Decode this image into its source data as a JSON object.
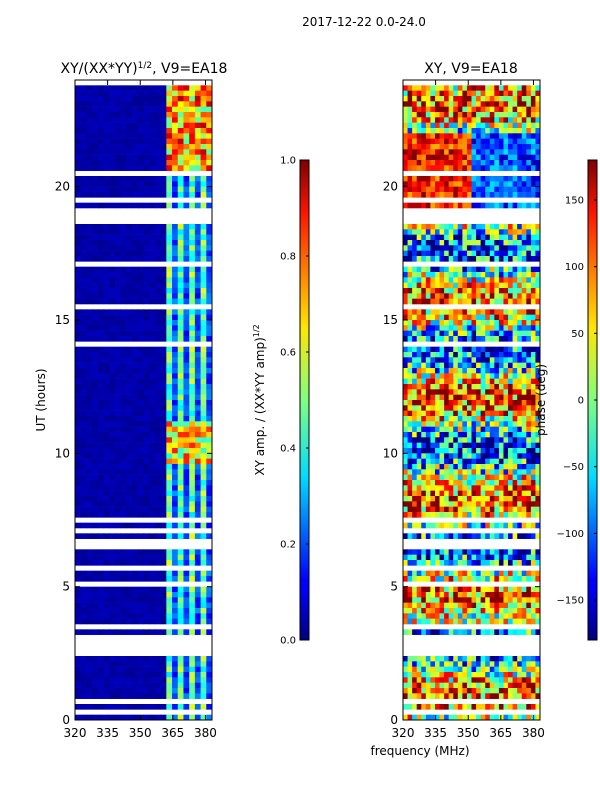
{
  "suptitle": "2017-12-22 0.0-24.0",
  "chart_data": [
    {
      "type": "heatmap",
      "title_main": "XY/(XX*YY)",
      "title_sup": "1/2",
      "title_rest": ", V9=EA18",
      "xlabel": "",
      "ylabel": "UT (hours)",
      "xlim": [
        320,
        383
      ],
      "ylim": [
        0,
        24
      ],
      "xticks": [
        "320",
        "335",
        "350",
        "365",
        "380"
      ],
      "yticks": [
        "0",
        "5",
        "10",
        "15",
        "20"
      ],
      "colorbar": {
        "label_main": "XY amp. / (XX*YY amp)",
        "label_sup": "1/2",
        "range": [
          0.0,
          1.0
        ],
        "ticks": [
          "0.0",
          "0.2",
          "0.4",
          "0.6",
          "0.8",
          "1.0"
        ],
        "colormap": "jet"
      }
    },
    {
      "type": "heatmap",
      "title": "XY, V9=EA18",
      "xlabel": "frequency (MHz)",
      "ylabel": "",
      "xlim": [
        320,
        383
      ],
      "ylim": [
        0,
        24
      ],
      "xticks": [
        "320",
        "335",
        "350",
        "365",
        "380"
      ],
      "yticks": [
        "0",
        "5",
        "10",
        "15",
        "20"
      ],
      "colorbar": {
        "label": "phase (deg)",
        "range": [
          -180,
          180
        ],
        "ticks": [
          "−150",
          "−100",
          "−50",
          "0",
          "50",
          "100",
          "150"
        ],
        "colormap": "jet"
      }
    }
  ]
}
